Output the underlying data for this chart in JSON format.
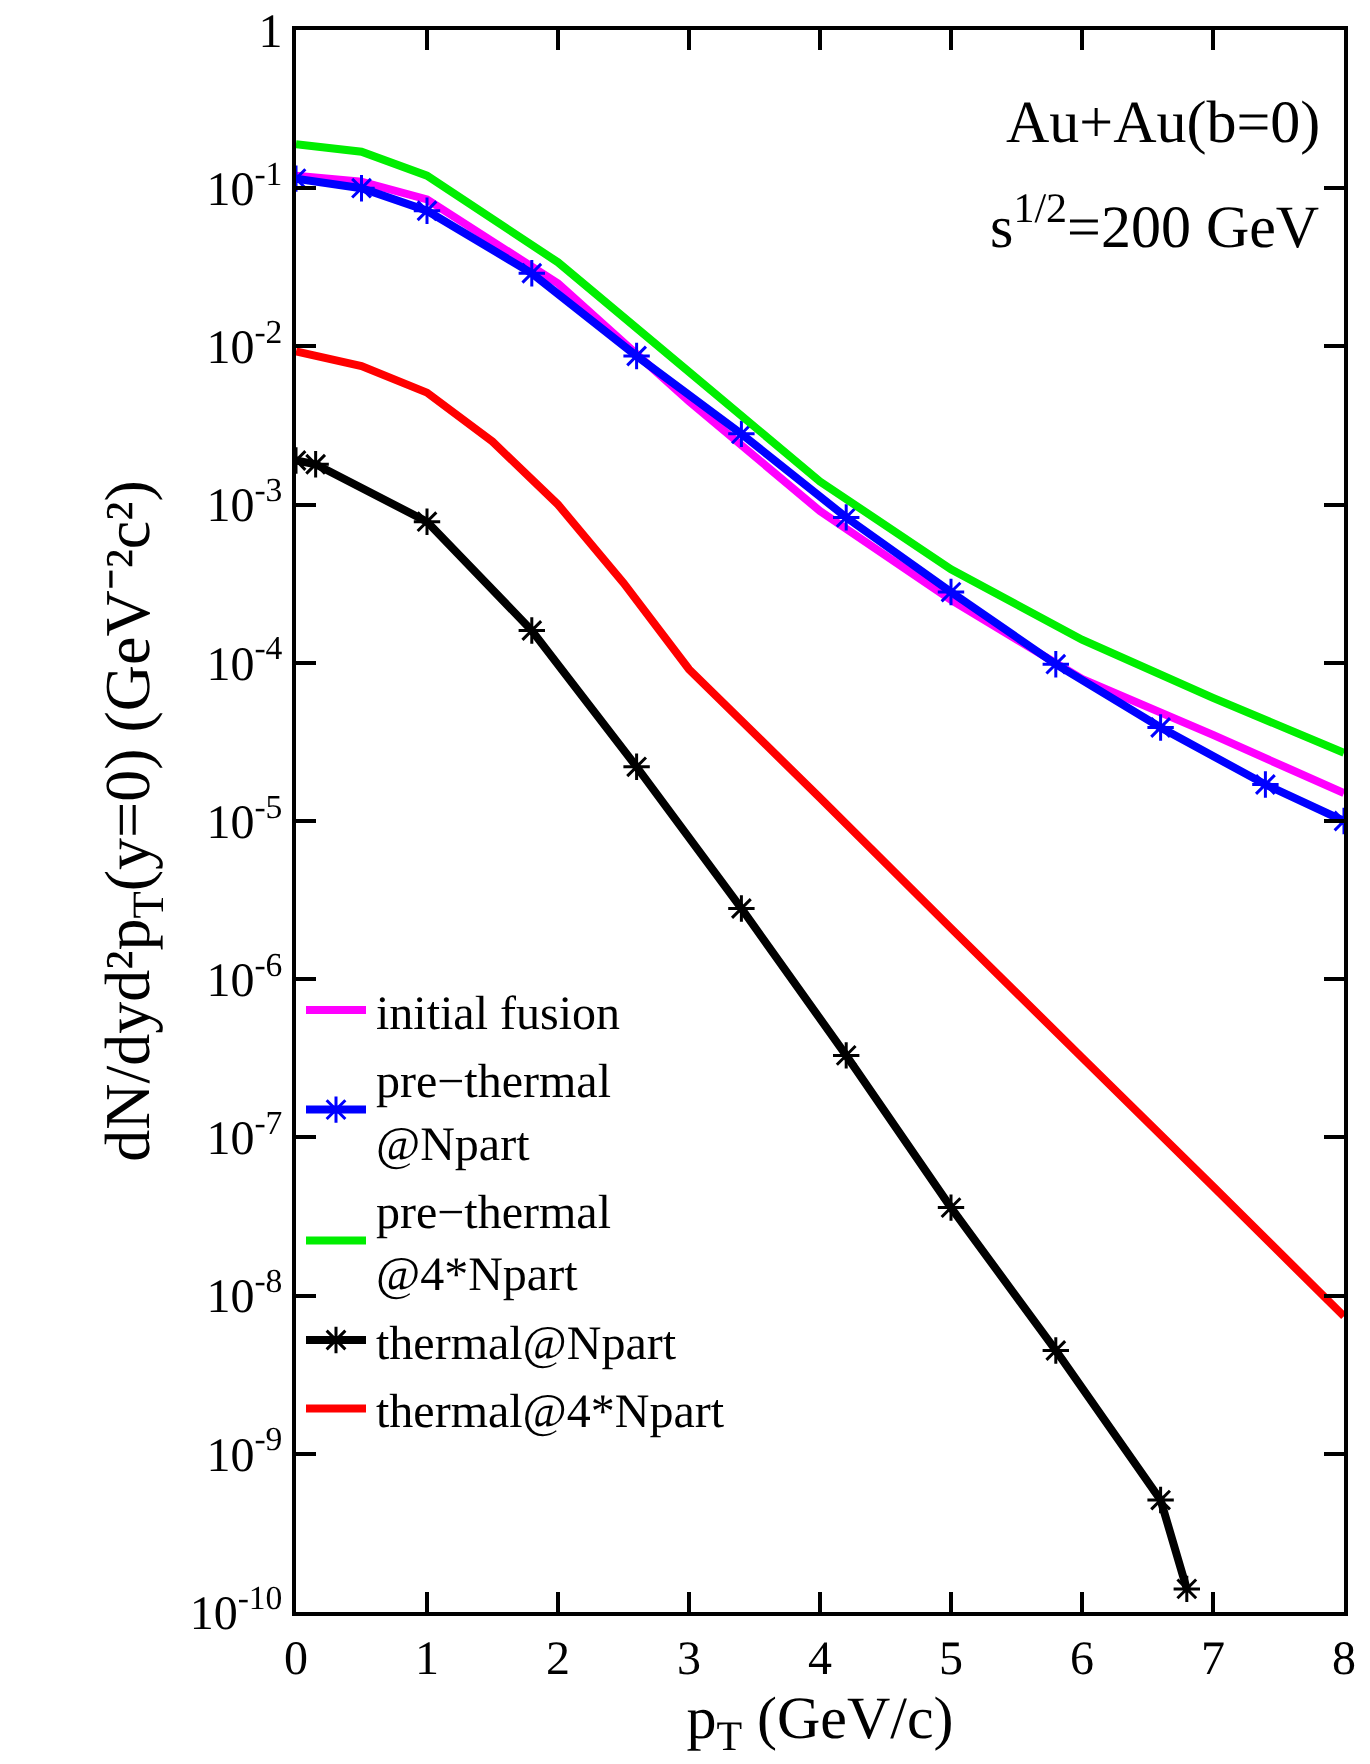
{
  "chart_data": {
    "type": "line",
    "xlabel": "p$_{T}$ (GeV/c)",
    "ylabel": "dN/dyd²p$_{T}$(y=0) (GeV⁻²c²)",
    "annotations": [
      "Au+Au(b=0)",
      "s$^{1/2}$=200 GeV"
    ],
    "log": "y",
    "grid": false,
    "legend": "bottom left",
    "xlim": [
      0,
      8
    ],
    "xticks": [
      0,
      1,
      2,
      3,
      4,
      5,
      6,
      7,
      8
    ],
    "ylim": [
      1e-10,
      1
    ],
    "yticks": [
      {
        "value": 1,
        "label": "1"
      },
      {
        "value": 0.1,
        "label": "10$^{-1}$"
      },
      {
        "value": 0.01,
        "label": "10$^{-2}$"
      },
      {
        "value": 0.001,
        "label": "10$^{-3}$"
      },
      {
        "value": 0.0001,
        "label": "10$^{-4}$"
      },
      {
        "value": 1e-05,
        "label": "10$^{-5}$"
      },
      {
        "value": 1e-06,
        "label": "10$^{-6}$"
      },
      {
        "value": 1e-07,
        "label": "10$^{-7}$"
      },
      {
        "value": 1e-08,
        "label": "10$^{-8}$"
      },
      {
        "value": 1e-09,
        "label": "10$^{-9}$"
      },
      {
        "value": 1e-10,
        "label": "10$^{-10}$"
      }
    ],
    "series": [
      {
        "name": "initial fusion",
        "color": "#ff00ff",
        "marker": "none",
        "x": [
          0,
          0.5,
          1,
          2,
          3,
          4,
          5,
          6,
          7,
          8
        ],
        "values": [
          0.12,
          0.11,
          0.085,
          0.025,
          0.0045,
          0.00091,
          0.00025,
          7.9e-05,
          3.5e-05,
          1.5e-05
        ]
      },
      {
        "name": "pre−thermal\n@Npart",
        "color": "#0000ff",
        "marker": "cross",
        "x": [
          0,
          0.5,
          1,
          1.8,
          2.6,
          3.4,
          4.2,
          5.0,
          5.8,
          6.6,
          7.4,
          8
        ],
        "values": [
          0.115,
          0.1,
          0.072,
          0.029,
          0.0087,
          0.0028,
          0.00083,
          0.00028,
          9.8e-05,
          3.9e-05,
          1.7e-05,
          1e-05
        ]
      },
      {
        "name": "pre−thermal\n@4*Npart",
        "color": "#00ee00",
        "marker": "none",
        "x": [
          0,
          0.5,
          1,
          2,
          3,
          4,
          5,
          6,
          7,
          8
        ],
        "values": [
          0.19,
          0.17,
          0.12,
          0.034,
          0.0069,
          0.0014,
          0.00039,
          0.00014,
          6e-05,
          2.7e-05
        ]
      },
      {
        "name": "thermal@Npart",
        "color": "#000000",
        "marker": "cross",
        "x": [
          0,
          0.15,
          1,
          1.8,
          2.6,
          3.4,
          4.2,
          5.0,
          5.8,
          6.6,
          6.8
        ],
        "values": [
          0.0019,
          0.0018,
          0.00078,
          0.00016,
          2.2e-05,
          2.8e-06,
          3.3e-07,
          3.6e-08,
          4.5e-09,
          5.1e-10,
          1.4e-10
        ]
      },
      {
        "name": "thermal@4*Npart",
        "color": "#ff0000",
        "marker": "none",
        "x": [
          0,
          0.5,
          1,
          1.5,
          2,
          2.5,
          3,
          4,
          5,
          6,
          7,
          8
        ],
        "values": [
          0.0093,
          0.0075,
          0.0051,
          0.0025,
          0.001,
          0.00032,
          9.1e-05,
          1.4e-05,
          2.1e-06,
          3.2e-07,
          4.9e-08,
          7.4e-09
        ]
      }
    ]
  }
}
